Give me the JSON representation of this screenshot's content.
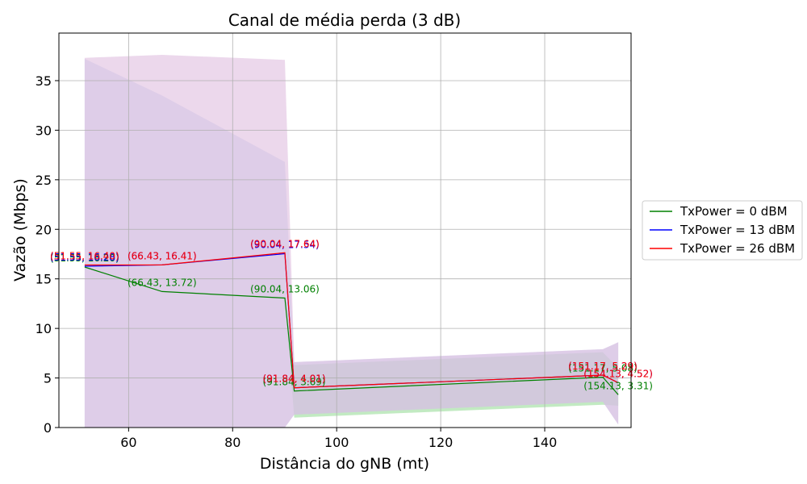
{
  "chart_data": {
    "type": "line",
    "title": "Canal de média perda (3 dB)",
    "xlabel": "Distância do gNB (mt)",
    "ylabel": "Vazão (Mbps)",
    "xlim": [
      46.6,
      156.6
    ],
    "ylim": [
      0,
      39.8
    ],
    "x_ticks": [
      60,
      80,
      100,
      120,
      140
    ],
    "y_ticks": [
      0,
      5,
      10,
      15,
      20,
      25,
      30,
      35
    ],
    "grid": true,
    "legend_position": "right",
    "series": [
      {
        "name": "TxPower = 0 dBM",
        "color": "#008000",
        "band_color": "#90d890",
        "x": [
          51.55,
          66.43,
          90.04,
          91.84,
          151.17,
          154.13
        ],
        "y": [
          16.2,
          13.72,
          13.06,
          3.69,
          5.08,
          3.31
        ],
        "band_low": [
          16.2,
          13.72,
          13.06,
          1.0,
          2.3,
          2.2
        ],
        "band_high": [
          16.2,
          13.72,
          13.06,
          6.3,
          7.6,
          6.0
        ],
        "labels": [
          "(51.55, 16.20)",
          "(66.43, 13.72)",
          "(90.04, 13.06)",
          "(91.84, 3.69)",
          "(151.17, 5.08)",
          "(154.13, 3.31)"
        ]
      },
      {
        "name": "TxPower = 13 dBM",
        "color": "#0000ff",
        "band_color": "#c8d4f0",
        "x": [
          51.55,
          66.43,
          90.04,
          91.84,
          151.17,
          154.13
        ],
        "y": [
          16.28,
          16.41,
          17.54,
          4.01,
          5.29,
          4.52
        ],
        "band_low": [
          0,
          0,
          0,
          1.3,
          2.6,
          0.3
        ],
        "band_high": [
          37.2,
          33.5,
          26.8,
          6.6,
          7.9,
          8.6
        ],
        "labels": [
          "(51.55, 16.28)",
          "(66.43, 16.41)",
          "(90.04, 17.54)",
          "(91.84, 4.01)",
          "(151.17, 5.29)",
          "(154.13, 4.52)"
        ]
      },
      {
        "name": "TxPower = 26 dBM",
        "color": "#ff0000",
        "band_color": "#dcb8dc",
        "x": [
          51.55,
          66.43,
          90.04,
          91.84,
          151.17,
          154.13
        ],
        "y": [
          16.4,
          16.41,
          17.64,
          4.01,
          5.29,
          4.52
        ],
        "band_low": [
          0,
          0,
          0,
          1.3,
          2.6,
          0.3
        ],
        "band_high": [
          37.3,
          37.6,
          37.1,
          6.6,
          7.9,
          8.6
        ],
        "labels": [
          "(51.55, 16.40)",
          "(66.43, 16.41)",
          "(90.04, 17.64)",
          "(91.84, 4.01)",
          "(151.17, 5.29)",
          "(154.13, 4.52)"
        ]
      }
    ]
  }
}
